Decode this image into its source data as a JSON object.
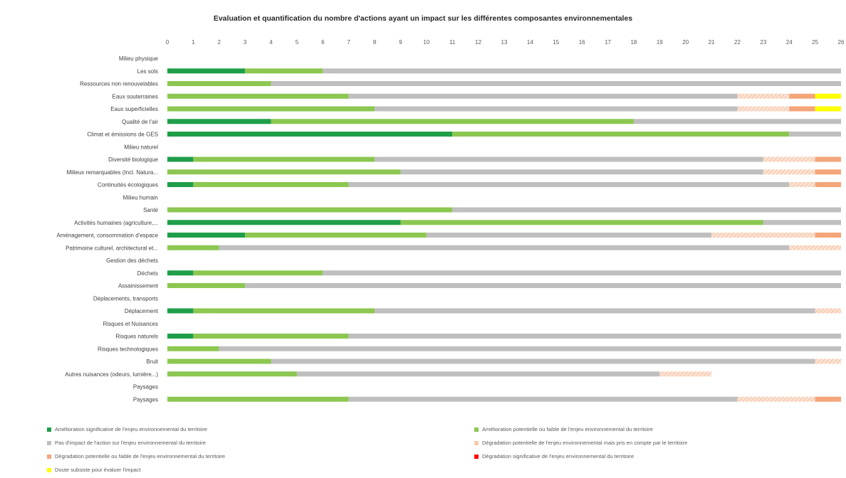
{
  "chart_data": {
    "type": "bar",
    "orientation": "horizontal",
    "stacked": true,
    "title": "Evaluation et quantification du nombre d'actions ayant un impact sur les différentes composantes environnementales",
    "xlim": [
      0,
      26
    ],
    "x_ticks": [
      "0",
      "1",
      "2",
      "3",
      "4",
      "5",
      "6",
      "7",
      "8",
      "9",
      "10",
      "11",
      "12",
      "13",
      "14",
      "15",
      "16",
      "17",
      "18",
      "19",
      "20",
      "21",
      "22",
      "23",
      "24",
      "25",
      "26"
    ],
    "x_axis_position": "top",
    "grid": false,
    "legend_position": "bottom",
    "categories": [
      "Milieu physique",
      "Les sols",
      "Ressources non renouvelables",
      "Eaux souterraines",
      "Eaux superficielles",
      "Qualité de l'air",
      "Climat et émissions de GES",
      "Milieu naturel",
      "Diversité biologique",
      "Milieux remarquables  (Incl. Natura...",
      "Continuités écologiques",
      "Milieu humain",
      "Santé",
      "Activités humaines (agriculture,...",
      "Aménagement, consommation d'espace",
      "Patrimoine culturel, architectural et...",
      "Gestion des déchets",
      "Déchets",
      "Assainissement",
      "Déplacements, transports",
      "Déplacement",
      "Risques et Nuisances",
      "Risques naturels",
      "Risques technologiques",
      "Bruit",
      "Autres nuisances (odeurs, lumière...)",
      "Paysages",
      "Paysages"
    ],
    "series": [
      {
        "name": "Amélioration significative de l'enjeu environnemental du territoire",
        "color": "#1f9e4a",
        "hatch": false,
        "values": [
          0,
          3,
          0,
          0,
          0,
          4,
          11,
          0,
          1,
          0,
          1,
          0,
          0,
          9,
          3,
          0,
          0,
          1,
          0,
          0,
          1,
          0,
          1,
          0,
          0,
          0,
          0,
          0
        ]
      },
      {
        "name": "Amélioration potentielle ou faible de l'enjeu environnemental du territoire",
        "color": "#8cc751",
        "hatch": false,
        "values": [
          0,
          3,
          4,
          7,
          8,
          14,
          13,
          0,
          7,
          9,
          6,
          0,
          11,
          14,
          7,
          2,
          0,
          5,
          3,
          0,
          7,
          0,
          6,
          2,
          4,
          5,
          0,
          7
        ]
      },
      {
        "name": "Pas d'impact de l'action sur l'enjeu environnemental du territoire",
        "color": "#bfbfbf",
        "hatch": false,
        "values": [
          0,
          20,
          22,
          15,
          14,
          8,
          2,
          0,
          15,
          14,
          17,
          0,
          15,
          3,
          11,
          22,
          0,
          20,
          23,
          0,
          17,
          0,
          19,
          24,
          21,
          14,
          0,
          15
        ]
      },
      {
        "name": "Dégradation potentielle de l'enjeu environnemental mais pris en compte par le territoire",
        "color": "#f8cbad",
        "hatch": true,
        "values": [
          0,
          0,
          0,
          2,
          2,
          0,
          0,
          0,
          2,
          2,
          1,
          0,
          0,
          0,
          4,
          2,
          0,
          0,
          0,
          0,
          1,
          0,
          0,
          0,
          1,
          2,
          0,
          3
        ]
      },
      {
        "name": "Dégradation potentielle ou faible de l'enjeu environnemental du territoire",
        "color": "#f4a57a",
        "hatch": false,
        "values": [
          0,
          0,
          0,
          1,
          1,
          0,
          0,
          0,
          1,
          1,
          1,
          0,
          0,
          0,
          1,
          0,
          0,
          0,
          0,
          0,
          0,
          0,
          0,
          0,
          0,
          0,
          0,
          1
        ]
      },
      {
        "name": "Dégradation significative de l'enjeu environnemental du territoire",
        "color": "#ff0000",
        "hatch": false,
        "values": [
          0,
          0,
          0,
          0,
          0,
          0,
          0,
          0,
          0,
          0,
          0,
          0,
          0,
          0,
          0,
          0,
          0,
          0,
          0,
          0,
          0,
          0,
          0,
          0,
          0,
          0,
          0,
          0
        ]
      },
      {
        "name": "Doute subsiste pour évaluer l'impact",
        "color": "#ffff00",
        "hatch": false,
        "values": [
          0,
          0,
          0,
          1,
          1,
          0,
          0,
          0,
          0,
          0,
          0,
          0,
          0,
          0,
          0,
          0,
          0,
          0,
          0,
          0,
          0,
          0,
          0,
          0,
          0,
          0,
          0,
          0
        ]
      }
    ]
  }
}
